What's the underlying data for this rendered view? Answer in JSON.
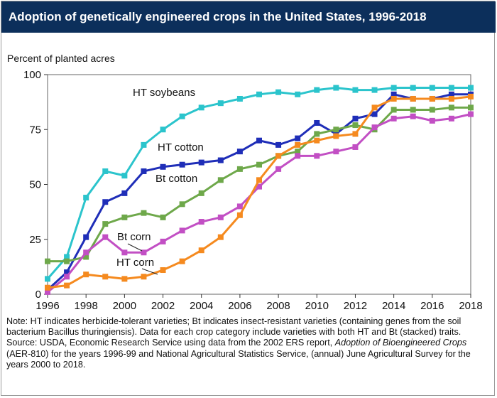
{
  "header": {
    "title": "Adoption of genetically engineered crops in the United States, 1996-2018"
  },
  "chart_data": {
    "type": "line",
    "title": "Adoption of genetically engineered crops in the United States, 1996-2018",
    "ylabel": "Percent of planted acres",
    "xlabel": "",
    "ylim": [
      0,
      100
    ],
    "xlim": [
      1996,
      2018
    ],
    "yticks": [
      0,
      25,
      50,
      75,
      100
    ],
    "xticks": [
      1996,
      1998,
      2000,
      2002,
      2004,
      2006,
      2008,
      2010,
      2012,
      2014,
      2016,
      2018
    ],
    "grid": false,
    "x": [
      1996,
      1997,
      1998,
      1999,
      2000,
      2001,
      2002,
      2003,
      2004,
      2005,
      2006,
      2007,
      2008,
      2009,
      2010,
      2011,
      2012,
      2013,
      2014,
      2015,
      2016,
      2017,
      2018
    ],
    "series": [
      {
        "name": "HT soybeans",
        "color": "#2bc4cc",
        "values": [
          7,
          17,
          44,
          56,
          54,
          68,
          75,
          81,
          85,
          87,
          89,
          91,
          92,
          91,
          93,
          94,
          93,
          93,
          94,
          94,
          94,
          94,
          94
        ]
      },
      {
        "name": "HT cotton",
        "color": "#1f2eb8",
        "values": [
          2,
          10,
          26,
          42,
          46,
          56,
          58,
          59,
          60,
          61,
          65,
          70,
          68,
          71,
          78,
          73,
          80,
          82,
          91,
          89,
          89,
          91,
          91
        ]
      },
      {
        "name": "Bt cotton",
        "color": "#6ea84a",
        "values": [
          15,
          15,
          17,
          32,
          35,
          37,
          35,
          41,
          46,
          52,
          57,
          59,
          63,
          65,
          73,
          75,
          77,
          75,
          84,
          84,
          84,
          85,
          85
        ]
      },
      {
        "name": "Bt corn",
        "color": "#c24fc4",
        "values": [
          1,
          8,
          19,
          26,
          19,
          19,
          24,
          29,
          33,
          35,
          40,
          49,
          57,
          63,
          63,
          65,
          67,
          76,
          80,
          81,
          79,
          80,
          82
        ]
      },
      {
        "name": "HT corn",
        "color": "#f58a1f",
        "values": [
          3,
          4,
          9,
          8,
          7,
          8,
          11,
          15,
          20,
          26,
          36,
          52,
          63,
          68,
          70,
          72,
          73,
          85,
          89,
          89,
          89,
          89,
          90
        ]
      }
    ],
    "annotations": [
      "HT soybeans",
      "HT cotton",
      "Bt cotton",
      "Bt corn",
      "HT corn"
    ]
  },
  "notes": {
    "note": "Note: HT indicates herbicide-tolerant varieties; Bt indicates insect-resistant varieties (containing genes from the soil bacterium Bacillus thuringiensis). Data for each crop category include varieties with both HT and Bt (stacked) traits.",
    "source_prefix": "Source: USDA, Economic Research Service using data from the 2002 ERS report, ",
    "source_title": "Adoption of Bioengineered Crops",
    "source_suffix": " (AER-810) for the years 1996-99 and National Agricultural Statistics Service, (annual) June Agricultural Survey for the years 2000 to 2018."
  }
}
